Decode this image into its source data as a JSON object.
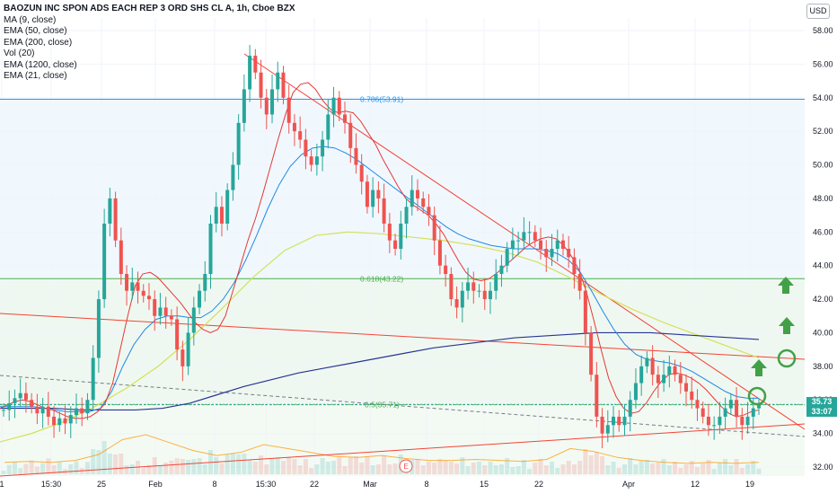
{
  "header": {
    "title": "BAOZUN INC SPON ADS EACH REP 3 ORD SHS CL A, 1h, Cboe BZX",
    "indicators": [
      "MA (9, close)",
      "EMA (50, close)",
      "EMA (200, close)",
      "Vol (20)",
      "EMA (1200, close)",
      "EMA (21, close)"
    ],
    "currency": "USD"
  },
  "price_tag": {
    "price": "35.73",
    "countdown": "33:07"
  },
  "colors": {
    "up": "#26a69a",
    "down": "#ef5350",
    "ma9": "#e53935",
    "ema50": "#1e88e5",
    "ema200": "#283593",
    "ema1200": "#d4e157",
    "trend": "#f44336",
    "fib": "#4caf50",
    "fib786": "#2196f3",
    "volume_ma": "#ff9800",
    "arrow": "#43a047"
  },
  "chart_data": {
    "type": "candlestick",
    "timeframe": "1h",
    "ylim": [
      31.5,
      59
    ],
    "y_ticks": [
      "58.00",
      "56.00",
      "54.00",
      "52.00",
      "50.00",
      "48.00",
      "46.00",
      "44.00",
      "42.00",
      "40.00",
      "38.00",
      "36.00",
      "34.00",
      "32.00"
    ],
    "x_ticks": [
      "1",
      "15:30",
      "25",
      "Feb",
      "8",
      "15:30",
      "22",
      "Mar",
      "8",
      "15",
      "22",
      "Apr",
      "12",
      "19"
    ],
    "fib_levels": [
      {
        "label": "0.786(53.91)",
        "value": 53.91
      },
      {
        "label": "0.618(43.22)",
        "value": 43.22
      },
      {
        "label": "0.5(35.71)",
        "value": 35.71
      }
    ],
    "close_series": [
      35.4,
      35.8,
      36.1,
      36.4,
      36.0,
      35.6,
      35.2,
      35.6,
      35.0,
      34.5,
      34.9,
      34.6,
      35.1,
      35.5,
      35.2,
      36.0,
      38.5,
      42.0,
      46.5,
      48.0,
      45.5,
      43.5,
      42.5,
      43.0,
      42.5,
      42.2,
      42.0,
      41.0,
      41.5,
      41.0,
      40.8,
      39.0,
      38.0,
      40.0,
      41.5,
      42.5,
      43.5,
      46.5,
      47.5,
      46.5,
      48.5,
      50.0,
      52.5,
      54.5,
      56.5,
      55.5,
      54.0,
      53.0,
      54.5,
      55.5,
      54.0,
      52.5,
      52.0,
      51.5,
      50.5,
      50.0,
      50.5,
      51.5,
      53.0,
      54.0,
      53.0,
      52.5,
      51.0,
      50.0,
      49.0,
      47.5,
      48.5,
      48.0,
      46.5,
      45.5,
      45.0,
      46.5,
      47.5,
      48.5,
      48.0,
      47.5,
      47.0,
      45.5,
      44.0,
      43.5,
      42.0,
      41.5,
      42.5,
      43.0,
      42.5,
      42.5,
      42.0,
      42.5,
      43.5,
      44.0,
      45.0,
      45.5,
      45.5,
      46.0,
      46.0,
      45.5,
      45.0,
      44.5,
      45.0,
      45.5,
      45.0,
      44.5,
      43.5,
      42.5,
      40.0,
      37.5,
      35.0,
      34.0,
      34.5,
      35.0,
      34.5,
      35.0,
      36.0,
      37.0,
      38.0,
      38.5,
      37.5,
      37.0,
      37.5,
      38.0,
      37.5,
      37.0,
      36.5,
      36.0,
      35.5,
      35.0,
      34.5,
      34.5,
      35.0,
      35.5,
      36.0,
      35.0,
      34.5,
      35.0,
      35.5,
      35.7
    ],
    "ma9": [
      35.5,
      35.7,
      35.9,
      36.0,
      35.9,
      35.7,
      35.5,
      35.4,
      35.2,
      35.0,
      34.9,
      34.9,
      35.0,
      35.3,
      35.8,
      37.0,
      39.0,
      41.0,
      42.8,
      43.5,
      43.6,
      43.3,
      42.8,
      42.3,
      41.8,
      41.2,
      40.6,
      40.2,
      40.0,
      40.2,
      41.0,
      42.5,
      44.0,
      45.5,
      46.8,
      48.3,
      49.9,
      51.5,
      53.0,
      54.3,
      54.8,
      54.9,
      54.5,
      53.8,
      53.3,
      53.1,
      53.2,
      53.1,
      52.6,
      51.9,
      51.2,
      50.3,
      49.5,
      48.7,
      48.0,
      47.6,
      47.3,
      47.0,
      46.5,
      45.9,
      45.1,
      44.3,
      43.6,
      43.2,
      43.1,
      43.2,
      43.5,
      43.9,
      44.3,
      44.7,
      45.1,
      45.4,
      45.6,
      45.7,
      45.6,
      45.2,
      44.6,
      43.8,
      42.5,
      40.8,
      39.0,
      37.3,
      36.2,
      35.5,
      35.2,
      35.3,
      35.8,
      36.5,
      37.1,
      37.5,
      37.6,
      37.5,
      37.3,
      37.0,
      36.6,
      36.1,
      35.6,
      35.2,
      35.0,
      35.1,
      35.3,
      35.4
    ],
    "ema50": [
      35.6,
      35.6,
      35.6,
      35.6,
      35.5,
      35.4,
      35.3,
      35.3,
      35.3,
      35.5,
      36.5,
      38.0,
      39.3,
      40.2,
      40.8,
      41.0,
      41.0,
      40.9,
      40.9,
      41.3,
      42.0,
      43.0,
      44.3,
      45.8,
      47.4,
      48.8,
      49.9,
      50.6,
      51.0,
      51.1,
      51.0,
      50.7,
      50.3,
      49.8,
      49.3,
      48.8,
      48.3,
      47.8,
      47.3,
      46.8,
      46.3,
      45.9,
      45.6,
      45.4,
      45.2,
      45.1,
      45.0,
      45.0,
      45.0,
      44.9,
      44.7,
      44.3,
      43.6,
      42.5,
      41.3,
      40.2,
      39.3,
      38.7,
      38.4,
      38.3,
      38.2,
      38.0,
      37.7,
      37.3,
      36.9,
      36.5,
      36.2,
      36.1,
      36.1
    ],
    "ema200": [
      35.5,
      35.5,
      35.5,
      35.4,
      35.4,
      35.4,
      35.5,
      35.8,
      36.3,
      36.8,
      37.2,
      37.6,
      37.9,
      38.2,
      38.5,
      38.8,
      39.1,
      39.3,
      39.5,
      39.7,
      39.8,
      39.9,
      40.0,
      40.0,
      40.0,
      39.9,
      39.8,
      39.7,
      39.6
    ],
    "ema1200": [
      33.5,
      34.0,
      34.7,
      35.6,
      36.7,
      38.0,
      39.6,
      41.4,
      43.3,
      44.9,
      45.8,
      46.0,
      45.9,
      45.7,
      45.5,
      45.2,
      44.8,
      44.2,
      43.3,
      42.3,
      41.4,
      40.6,
      39.9,
      39.2,
      38.5
    ],
    "volume_ma": [
      1.2,
      1.3,
      1.2,
      1.4,
      2.0,
      3.5,
      4.0,
      3.2,
      2.4,
      1.9,
      2.2,
      3.0,
      2.6,
      2.2,
      1.8,
      1.7,
      1.9,
      1.6,
      1.4,
      1.4,
      1.5,
      1.4,
      1.3,
      1.5,
      2.6,
      2.3,
      1.7,
      1.4,
      1.2,
      1.1,
      1.2,
      1.1,
      1.2
    ],
    "annotations": [
      "E"
    ]
  }
}
